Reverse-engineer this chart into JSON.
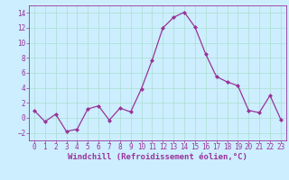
{
  "x": [
    0,
    1,
    2,
    3,
    4,
    5,
    6,
    7,
    8,
    9,
    10,
    11,
    12,
    13,
    14,
    15,
    16,
    17,
    18,
    19,
    20,
    21,
    22,
    23
  ],
  "y": [
    1.0,
    -0.5,
    0.5,
    -1.8,
    -1.5,
    1.2,
    1.6,
    -0.3,
    1.3,
    0.8,
    3.9,
    7.7,
    12.0,
    13.4,
    14.1,
    12.1,
    8.5,
    5.5,
    4.8,
    4.3,
    1.0,
    0.7,
    3.0,
    -0.2
  ],
  "line_color": "#993399",
  "marker": "D",
  "marker_size": 2.0,
  "bg_color": "#cceeff",
  "grid_color": "#aaddcc",
  "xlabel": "Windchill (Refroidissement éolien,°C)",
  "ylabel": "",
  "xlim": [
    -0.5,
    23.5
  ],
  "ylim": [
    -3.0,
    15.0
  ],
  "yticks": [
    -2,
    0,
    2,
    4,
    6,
    8,
    10,
    12,
    14
  ],
  "xticks": [
    0,
    1,
    2,
    3,
    4,
    5,
    6,
    7,
    8,
    9,
    10,
    11,
    12,
    13,
    14,
    15,
    16,
    17,
    18,
    19,
    20,
    21,
    22,
    23
  ],
  "tick_color": "#993399",
  "label_color": "#993399",
  "spine_color": "#993399",
  "tick_fontsize": 5.5,
  "xlabel_fontsize": 6.5,
  "linewidth": 0.9
}
